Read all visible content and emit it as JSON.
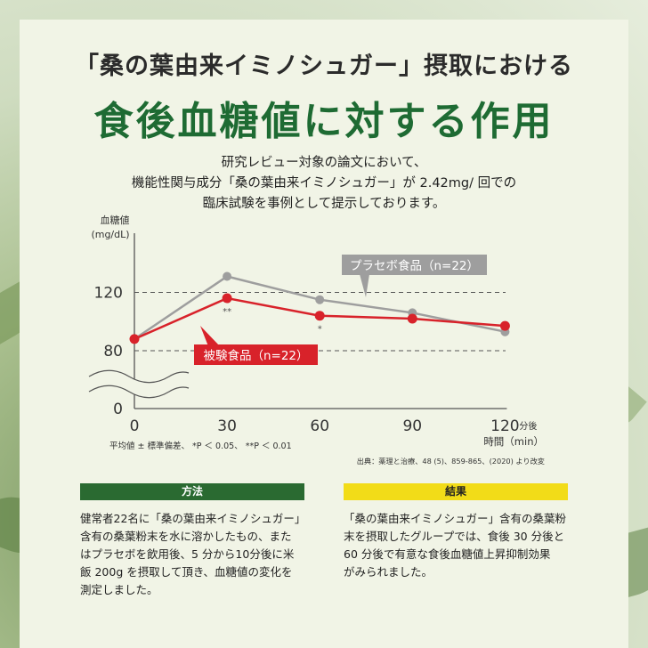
{
  "title": {
    "line1": "「桑の葉由来イミノシュガー」摂取における",
    "line2": "食後血糖値に対する作用"
  },
  "intro": [
    "研究レビュー対象の論文において、",
    "機能性関与成分「桑の葉由来イミノシュガー」が 2.42mg/ 回での",
    "臨床試験を事例として提示しております。"
  ],
  "colors": {
    "placebo": "#9e9e9e",
    "test": "#d8222a",
    "brand_green": "#1e6b33",
    "result_yellow": "#f2dc18"
  },
  "chart_data": {
    "type": "line",
    "ylabel": [
      "血糖値",
      "(mg/dL)"
    ],
    "xlabel": "時間（min）",
    "x_unit_note": "分後",
    "x": [
      0,
      30,
      60,
      90,
      120
    ],
    "x_ticks": [
      "0",
      "30",
      "60",
      "90",
      "120"
    ],
    "y_ticks": [
      "0",
      "80",
      "120"
    ],
    "axis_break": true,
    "dashed_reference_lines": [
      80,
      120
    ],
    "series": [
      {
        "name": "プラセボ食品（n=22）",
        "color": "#9e9e9e",
        "values": [
          88,
          131,
          115,
          106,
          93
        ]
      },
      {
        "name": "被験食品（n=22）",
        "color": "#d8222a",
        "values": [
          88,
          116,
          104,
          102,
          97
        ]
      }
    ],
    "significance": [
      {
        "x": 30,
        "label": "**"
      },
      {
        "x": 60,
        "label": "*"
      }
    ],
    "footnote": "平均値 ± 標準偏差、 *P ＜ 0.05、 **P ＜ 0.01",
    "source": "出典：薬理と治療、48 (5)、859-865、(2020) より改変"
  },
  "method": {
    "heading": "方法",
    "lines": [
      "健常者22名に「桑の葉由来イミノシュガー」",
      "含有の桑葉粉末を水に溶かしたもの、また",
      "はプラセボを飲用後、5 分から10分後に米",
      "飯 200g を摂取して頂き、血糖値の変化を",
      "測定しました。"
    ]
  },
  "result": {
    "heading": "結果",
    "lines": [
      "「桑の葉由来イミノシュガー」含有の桑葉粉",
      "末を摂取したグループでは、食後 30 分後と",
      "60 分後で有意な食後血糖値上昇抑制効果",
      "がみられました。"
    ]
  }
}
